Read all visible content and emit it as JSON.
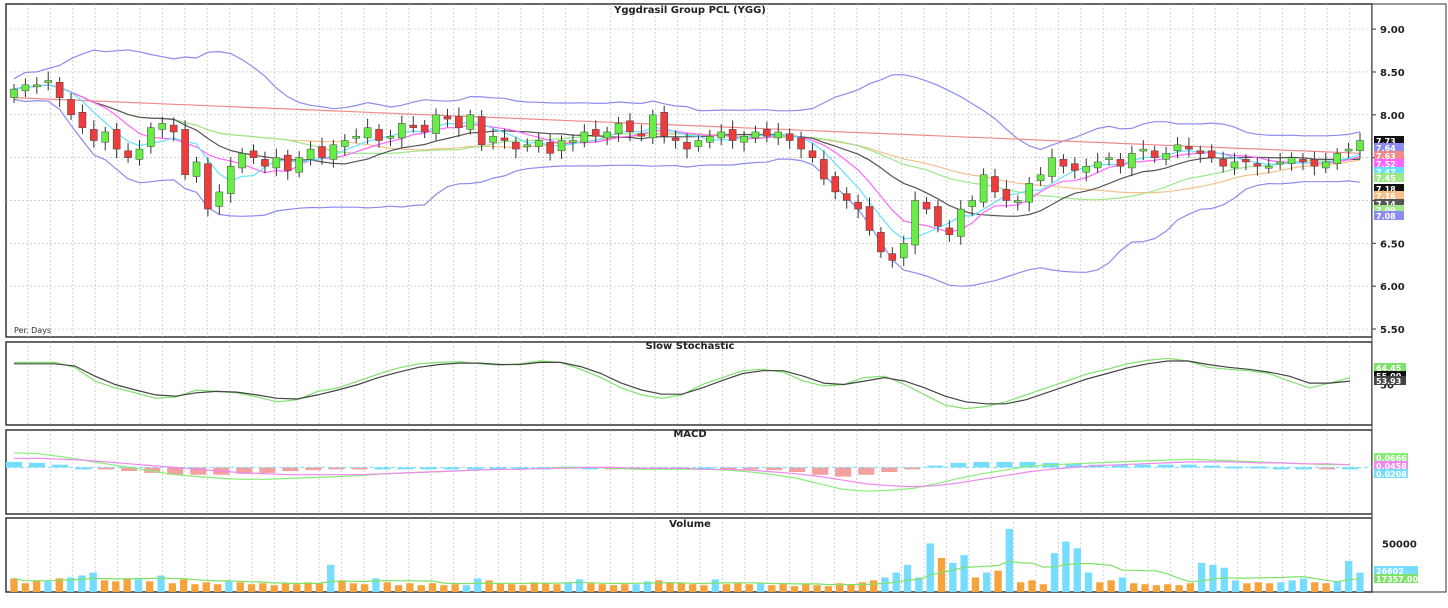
{
  "colors": {
    "up": "#66ee44",
    "down": "#ee3b3b",
    "grid": "#b8b8b8",
    "frame": "#333333",
    "bb": "#8c8cf0",
    "sma200": "#f08a8a",
    "sma_a": "#f5c08a",
    "sma_b": "#9ee889",
    "sma_c": "#555555",
    "sma_d": "#ff66ff",
    "sma_e": "#66e0ff",
    "stoch_k": "#7ee26a",
    "stoch_d": "#444444",
    "macd": "#88ee77",
    "macd_signal": "#ee88ee",
    "hist_pos": "#77ddff",
    "hist_neg": "#f3a0a0",
    "vol_up": "#77ddff",
    "vol_down": "#f5a33c",
    "vol_ma": "#7ee26a"
  },
  "chart_data": [
    {
      "type": "candlestick",
      "title": "Yggdrasil Group PCL (YGG)",
      "interval_label": "Per. Days",
      "y_ticks": [
        "9.00",
        "8.50",
        "8.00",
        "7.50",
        "7.00",
        "6.50",
        "6.00",
        "5.50"
      ],
      "ylim": [
        5.5,
        9.2
      ],
      "closes": [
        8.3,
        8.35,
        8.35,
        8.4,
        8.2,
        8.0,
        7.85,
        7.7,
        7.8,
        7.6,
        7.5,
        7.6,
        7.85,
        7.9,
        7.8,
        7.3,
        7.45,
        6.9,
        7.1,
        7.4,
        7.55,
        7.5,
        7.4,
        7.5,
        7.35,
        7.5,
        7.6,
        7.5,
        7.65,
        7.7,
        7.75,
        7.85,
        7.7,
        7.75,
        7.9,
        7.85,
        7.8,
        8.0,
        7.95,
        7.85,
        8.0,
        7.65,
        7.75,
        7.7,
        7.6,
        7.65,
        7.7,
        7.55,
        7.7,
        7.7,
        7.8,
        7.75,
        7.8,
        7.9,
        7.8,
        7.75,
        8.0,
        7.75,
        7.7,
        7.6,
        7.7,
        7.75,
        7.8,
        7.7,
        7.75,
        7.8,
        7.75,
        7.8,
        7.7,
        7.6,
        7.5,
        7.25,
        7.1,
        7.0,
        6.9,
        6.65,
        6.4,
        6.3,
        6.5,
        7.0,
        6.9,
        6.7,
        6.6,
        6.9,
        7.0,
        7.3,
        7.1,
        7.0,
        7.0,
        7.2,
        7.3,
        7.5,
        7.4,
        7.35,
        7.4,
        7.45,
        7.5,
        7.4,
        7.55,
        7.6,
        7.5,
        7.55,
        7.65,
        7.6,
        7.55,
        7.5,
        7.4,
        7.45,
        7.45,
        7.4,
        7.4,
        7.45,
        7.5,
        7.45,
        7.4,
        7.45,
        7.55,
        7.6,
        7.7
      ],
      "last_labels": [
        "7.73",
        "7.64",
        "7.63",
        "7.52",
        "7.47",
        "7.45",
        "7.18",
        "7.16",
        "7.14",
        "7.09",
        "7.08"
      ],
      "legend": "none"
    },
    {
      "type": "line",
      "title": "Slow Stochastic",
      "ylim": [
        0,
        100
      ],
      "y_ticks": [
        "50"
      ],
      "series": [
        {
          "values": [
            82,
            82,
            82,
            75,
            55,
            45,
            38,
            30,
            32,
            42,
            40,
            38,
            32,
            25,
            28,
            40,
            45,
            55,
            65,
            74,
            80,
            82,
            83,
            80,
            78,
            80,
            84,
            82,
            72,
            60,
            45,
            35,
            30,
            35,
            50,
            60,
            70,
            72,
            68,
            55,
            48,
            50,
            60,
            62,
            50,
            35,
            20,
            15,
            18,
            25,
            35,
            45,
            55,
            65,
            72,
            80,
            85,
            88,
            84,
            75,
            72,
            70,
            66,
            55,
            45,
            52,
            60
          ]
        },
        {
          "values": [
            80,
            80,
            80,
            77,
            62,
            50,
            42,
            35,
            33,
            38,
            40,
            39,
            35,
            30,
            29,
            35,
            42,
            50,
            60,
            68,
            75,
            79,
            81,
            81,
            79,
            79,
            82,
            82,
            76,
            66,
            52,
            42,
            36,
            36,
            45,
            56,
            66,
            70,
            70,
            62,
            52,
            50,
            55,
            60,
            55,
            45,
            33,
            25,
            22,
            22,
            28,
            38,
            48,
            58,
            66,
            74,
            80,
            84,
            84,
            79,
            75,
            72,
            68,
            62,
            52,
            52,
            55
          ]
        }
      ],
      "last_labels": [
        "64.45",
        "55.00",
        "53.93"
      ]
    },
    {
      "type": "bar_line",
      "title": "MACD",
      "ylim": [
        -0.4,
        0.3
      ],
      "series": [
        {
          "values": [
            0.16,
            0.15,
            0.12,
            0.08,
            0.04,
            0.0,
            -0.04,
            -0.08,
            -0.1,
            -0.12,
            -0.13,
            -0.13,
            -0.12,
            -0.11,
            -0.1,
            -0.09,
            -0.07,
            -0.06,
            -0.05,
            -0.04,
            -0.03,
            -0.02,
            -0.02,
            -0.01,
            0.0,
            0.0,
            -0.01,
            -0.02,
            -0.02,
            -0.02,
            -0.02,
            -0.03,
            -0.05,
            -0.08,
            -0.12,
            -0.18,
            -0.24,
            -0.26,
            -0.25,
            -0.23,
            -0.18,
            -0.12,
            -0.07,
            -0.03,
            0.01,
            0.03,
            0.04,
            0.05,
            0.06,
            0.07,
            0.08,
            0.09,
            0.08,
            0.07,
            0.06,
            0.05,
            0.04,
            0.03,
            0.03
          ]
        },
        {
          "values": [
            0.1,
            0.1,
            0.09,
            0.08,
            0.06,
            0.04,
            0.02,
            0.0,
            -0.02,
            -0.04,
            -0.06,
            -0.07,
            -0.08,
            -0.08,
            -0.08,
            -0.08,
            -0.07,
            -0.06,
            -0.05,
            -0.04,
            -0.03,
            -0.02,
            -0.02,
            -0.01,
            -0.01,
            0.0,
            0.0,
            -0.01,
            -0.01,
            -0.01,
            -0.02,
            -0.02,
            -0.03,
            -0.05,
            -0.07,
            -0.1,
            -0.14,
            -0.18,
            -0.2,
            -0.21,
            -0.2,
            -0.17,
            -0.13,
            -0.09,
            -0.05,
            -0.02,
            0.0,
            0.02,
            0.03,
            0.04,
            0.05,
            0.06,
            0.06,
            0.06,
            0.05,
            0.05,
            0.04,
            0.04,
            0.03
          ]
        }
      ],
      "histogram": [
        0.06,
        0.05,
        0.03,
        0.0,
        -0.02,
        -0.04,
        -0.06,
        -0.08,
        -0.08,
        -0.08,
        -0.07,
        -0.06,
        -0.04,
        -0.03,
        -0.02,
        -0.01,
        0.0,
        0.0,
        0.0,
        0.0,
        0.0,
        0.0,
        0.0,
        0.0,
        0.01,
        0.0,
        -0.01,
        -0.01,
        -0.01,
        -0.01,
        0.0,
        -0.01,
        -0.02,
        -0.03,
        -0.05,
        -0.08,
        -0.1,
        -0.08,
        -0.05,
        -0.02,
        0.02,
        0.05,
        0.06,
        0.06,
        0.06,
        0.05,
        0.04,
        0.03,
        0.03,
        0.03,
        0.03,
        0.03,
        0.02,
        0.01,
        0.01,
        0.0,
        0.0,
        -0.01,
        0.0
      ],
      "last_labels": [
        "0.0666",
        "0.0458",
        "0.0208"
      ]
    },
    {
      "type": "bar",
      "title": "Volume",
      "ylim": [
        0,
        70000
      ],
      "y_ticks": [
        "50000"
      ],
      "values": [
        14000,
        9000,
        12000,
        11000,
        14000,
        15000,
        17000,
        20000,
        12000,
        11000,
        14000,
        13000,
        11000,
        17000,
        9000,
        13000,
        8000,
        10000,
        8000,
        11000,
        10000,
        8000,
        9000,
        7000,
        9000,
        8000,
        10000,
        9000,
        28000,
        12000,
        9000,
        8000,
        14000,
        10000,
        7000,
        9000,
        7000,
        9000,
        7000,
        8000,
        7000,
        14000,
        12000,
        9000,
        8000,
        7000,
        10000,
        9000,
        8000,
        10000,
        13000,
        9000,
        8000,
        7000,
        8000,
        8000,
        11000,
        12000,
        10000,
        9000,
        8000,
        7000,
        13000,
        8000,
        9000,
        8000,
        9000,
        7000,
        8000,
        6000,
        8000,
        7000,
        6000,
        9000,
        8000,
        10000,
        12000,
        15000,
        20000,
        28000,
        15000,
        50000,
        35000,
        30000,
        38000,
        15000,
        20000,
        22000,
        65000,
        10000,
        12000,
        8000,
        40000,
        52000,
        45000,
        20000,
        10000,
        12000,
        15000,
        9000,
        8000,
        7000,
        8000,
        7000,
        9000,
        30000,
        28000,
        25000,
        12000,
        9000,
        10000,
        9000,
        10000,
        12000,
        14000,
        10000,
        9000,
        11000,
        32000,
        20000
      ],
      "up_flags": [
        0,
        0,
        0,
        1,
        0,
        1,
        1,
        1,
        0,
        0,
        0,
        1,
        0,
        1,
        0,
        0,
        0,
        0,
        0,
        1,
        0,
        0,
        0,
        0,
        0,
        0,
        0,
        0,
        1,
        0,
        0,
        0,
        1,
        0,
        0,
        0,
        0,
        0,
        0,
        0,
        1,
        1,
        0,
        0,
        0,
        0,
        0,
        0,
        0,
        1,
        1,
        0,
        0,
        0,
        0,
        1,
        1,
        0,
        0,
        0,
        0,
        0,
        1,
        0,
        0,
        0,
        1,
        0,
        0,
        0,
        0,
        0,
        0,
        0,
        0,
        0,
        0,
        1,
        1,
        1,
        1,
        1,
        0,
        1,
        1,
        0,
        1,
        0,
        1,
        0,
        0,
        0,
        1,
        1,
        1,
        1,
        0,
        0,
        1,
        0,
        0,
        0,
        0,
        0,
        0,
        1,
        1,
        1,
        1,
        0,
        0,
        0,
        1,
        1,
        1,
        0,
        0,
        1,
        1,
        1
      ],
      "last_labels": [
        "26602",
        "17357.00"
      ]
    }
  ]
}
